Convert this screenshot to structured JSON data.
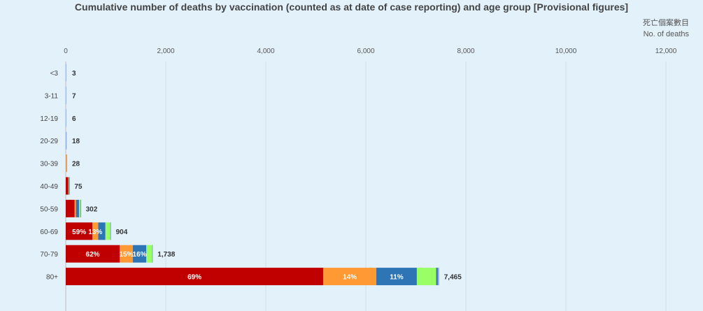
{
  "chart_data": {
    "type": "bar",
    "orientation": "horizontal",
    "stacked": true,
    "title": "Cumulative number of deaths by vaccination (counted as at date of case reporting) and age group [Provisional figures]",
    "unit_label_zh": "死亡個案數目",
    "unit_label_en": "No. of deaths",
    "xlim": [
      0,
      12000
    ],
    "x_ticks": [
      0,
      2000,
      4000,
      6000,
      8000,
      10000,
      12000
    ],
    "x_tick_labels": [
      "0",
      "2,000",
      "4,000",
      "6,000",
      "8,000",
      "10,000",
      "12,000"
    ],
    "grid": true,
    "categories": [
      "<3",
      "3-11",
      "12-19",
      "20-29",
      "30-39",
      "40-49",
      "50-59",
      "60-69",
      "70-79",
      "80+"
    ],
    "totals": [
      3,
      7,
      6,
      18,
      28,
      75,
      302,
      904,
      1738,
      7465
    ],
    "total_labels": [
      "3",
      "7",
      "6",
      "18",
      "28",
      "75",
      "302",
      "904",
      "1,738",
      "7,465"
    ],
    "series": [
      {
        "color": "#c00000",
        "values": [
          0,
          0,
          0,
          0,
          0,
          52,
          175,
          535,
          1078,
          5150
        ]
      },
      {
        "color": "#ff9933",
        "values": [
          0,
          0,
          0,
          0,
          12,
          6,
          30,
          113,
          263,
          1060
        ]
      },
      {
        "color": "#2e75b6",
        "values": [
          0,
          0,
          0,
          0,
          0,
          5,
          60,
          145,
          270,
          810
        ]
      },
      {
        "color": "#99ff66",
        "values": [
          0,
          0,
          0,
          0,
          0,
          5,
          27,
          98,
          115,
          385
        ]
      },
      {
        "color": "#4472c4",
        "values": [
          0,
          0,
          0,
          0,
          0,
          2,
          5,
          3,
          2,
          35
        ]
      },
      {
        "color": "#8faadc",
        "values": [
          3,
          7,
          6,
          18,
          16,
          5,
          5,
          10,
          10,
          25
        ]
      }
    ],
    "segment_labels": [
      {
        "row": 7,
        "series": 0,
        "text": "59%"
      },
      {
        "row": 7,
        "series": 1,
        "text": "13%"
      },
      {
        "row": 8,
        "series": 0,
        "text": "62%"
      },
      {
        "row": 8,
        "series": 1,
        "text": "15%"
      },
      {
        "row": 8,
        "series": 2,
        "text": "16%"
      },
      {
        "row": 9,
        "series": 0,
        "text": "69%"
      },
      {
        "row": 9,
        "series": 1,
        "text": "14%"
      },
      {
        "row": 9,
        "series": 2,
        "text": "11%"
      }
    ]
  }
}
